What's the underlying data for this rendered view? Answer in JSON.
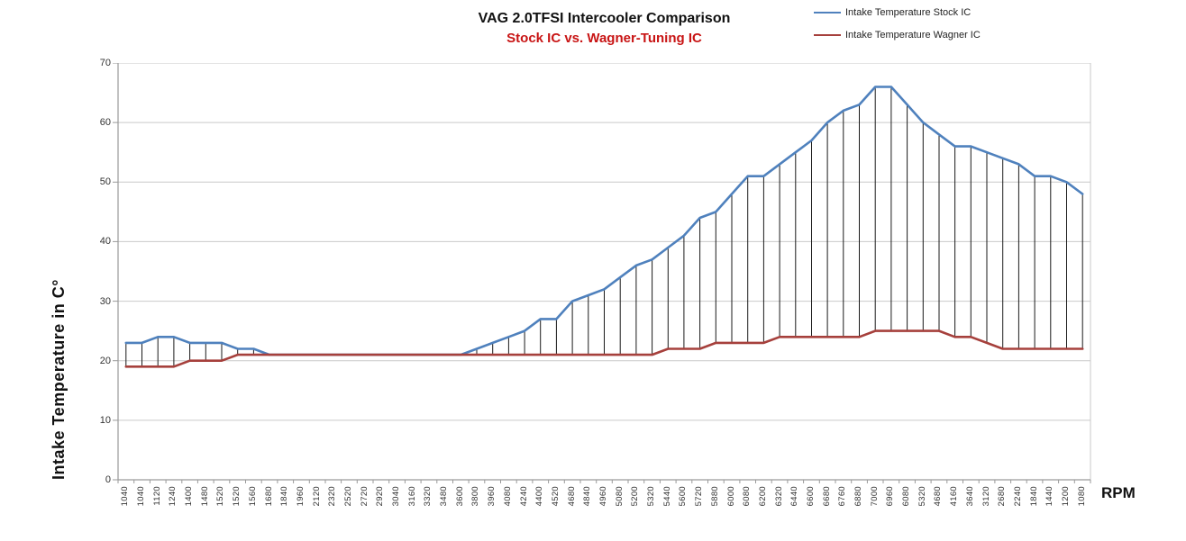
{
  "header": {
    "title": "VAG 2.0TFSI Intercooler Comparison",
    "subtitle": "Stock IC vs. Wagner-Tuning IC"
  },
  "axes": {
    "y_title": "Intake Temperature in C°",
    "x_title": "RPM",
    "y_ticks": [
      70,
      60,
      50,
      40,
      30,
      20,
      10,
      0
    ]
  },
  "colors": {
    "title": "#111111",
    "subtitle": "#C81414",
    "stock_line": "#4F81BD",
    "wagner_line": "#A6403C",
    "grid": "#C9C9C9",
    "axis": "#9A9A9A",
    "hatch": "#1a1a1a"
  },
  "chart_data": {
    "type": "line",
    "title": "VAG 2.0TFSI Intercooler Comparison",
    "subtitle": "Stock IC vs. Wagner-Tuning IC",
    "xlabel": "RPM",
    "ylabel": "Intake Temperature in C°",
    "ylim": [
      0,
      70
    ],
    "grid": "horizontal",
    "legend_position": "top-right",
    "high_low_lines": true,
    "categories": [
      "1040",
      "1040",
      "1120",
      "1240",
      "1400",
      "1480",
      "1520",
      "1520",
      "1560",
      "1680",
      "1840",
      "1960",
      "2120",
      "2320",
      "2520",
      "2720",
      "2920",
      "3040",
      "3160",
      "3320",
      "3480",
      "3600",
      "3800",
      "3960",
      "4080",
      "4240",
      "4400",
      "4520",
      "4680",
      "4840",
      "4960",
      "5080",
      "5200",
      "5320",
      "5440",
      "5600",
      "5720",
      "5880",
      "6000",
      "6080",
      "6200",
      "6320",
      "6440",
      "6600",
      "6680",
      "6760",
      "6880",
      "7000",
      "6960",
      "6080",
      "5320",
      "4680",
      "4160",
      "3640",
      "3120",
      "2680",
      "2240",
      "1840",
      "1440",
      "1200",
      "1080"
    ],
    "series": [
      {
        "name": "Intake Temperature Stock IC",
        "color": "#4F81BD",
        "values": [
          23,
          23,
          24,
          24,
          23,
          23,
          23,
          22,
          22,
          21,
          21,
          21,
          21,
          21,
          21,
          21,
          21,
          21,
          21,
          21,
          21,
          21,
          22,
          23,
          24,
          25,
          27,
          27,
          30,
          31,
          32,
          34,
          36,
          37,
          39,
          41,
          44,
          45,
          48,
          51,
          51,
          53,
          55,
          57,
          60,
          62,
          63,
          66,
          66,
          63,
          60,
          58,
          56,
          56,
          55,
          54,
          53,
          51,
          51,
          50,
          48
        ]
      },
      {
        "name": "Intake Temperature Wagner IC",
        "color": "#A6403C",
        "values": [
          19,
          19,
          19,
          19,
          20,
          20,
          20,
          21,
          21,
          21,
          21,
          21,
          21,
          21,
          21,
          21,
          21,
          21,
          21,
          21,
          21,
          21,
          21,
          21,
          21,
          21,
          21,
          21,
          21,
          21,
          21,
          21,
          21,
          21,
          22,
          22,
          22,
          23,
          23,
          23,
          23,
          24,
          24,
          24,
          24,
          24,
          24,
          25,
          25,
          25,
          25,
          25,
          24,
          24,
          23,
          22,
          22,
          22,
          22,
          22,
          22
        ]
      }
    ]
  }
}
